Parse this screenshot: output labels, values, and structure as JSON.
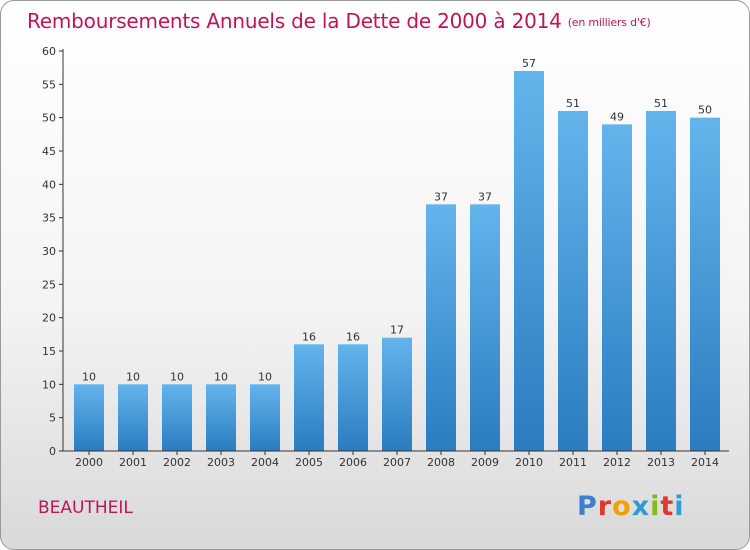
{
  "header": {
    "title": "Remboursements Annuels de la Dette de 2000 à 2014",
    "subtitle": "(en milliers d'€)"
  },
  "commune": "BEAUTHEIL",
  "logo": {
    "text": "Proxiti"
  },
  "colors": {
    "bar_light": "#64b4ec",
    "bar_dark": "#2b7cc0",
    "title": "#c0145a"
  },
  "chart_data": {
    "type": "bar",
    "title": "Remboursements Annuels de la Dette de 2000 à 2014",
    "subtitle": "(en milliers d'€)",
    "xlabel": "",
    "ylabel": "",
    "categories": [
      "2000",
      "2001",
      "2002",
      "2003",
      "2004",
      "2005",
      "2006",
      "2007",
      "2008",
      "2009",
      "2010",
      "2011",
      "2012",
      "2013",
      "2014"
    ],
    "values": [
      10,
      10,
      10,
      10,
      10,
      16,
      16,
      17,
      37,
      37,
      57,
      51,
      49,
      51,
      50
    ],
    "ylim": [
      0,
      60
    ],
    "yticks": [
      0,
      5,
      10,
      15,
      20,
      25,
      30,
      35,
      40,
      45,
      50,
      55,
      60
    ],
    "grid": false,
    "legend": "none"
  }
}
